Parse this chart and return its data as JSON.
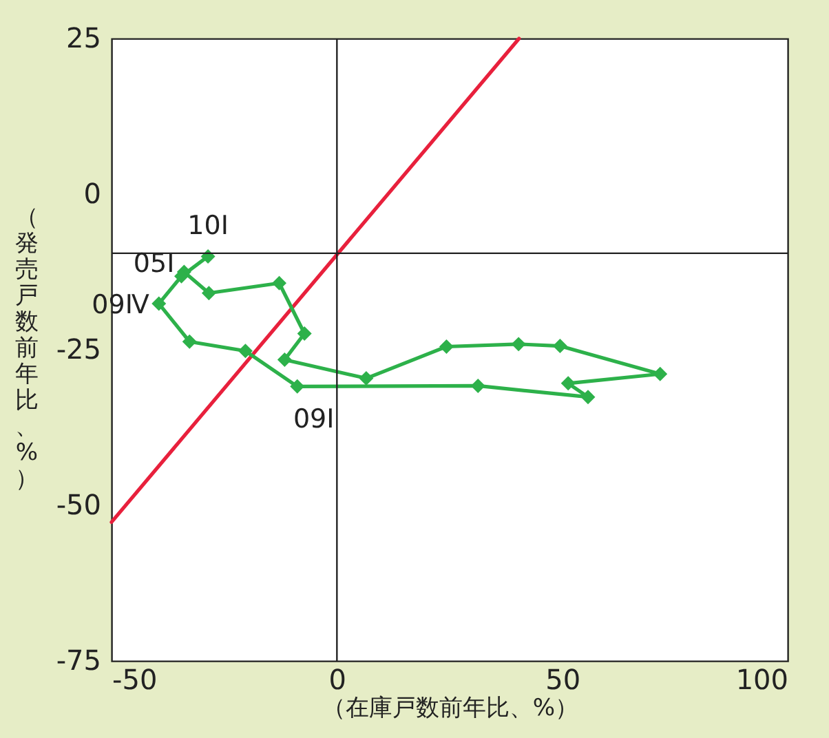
{
  "chart_data": {
    "type": "line",
    "xlabel": "（在庫戸数前年比、%）",
    "ylabel": "（発売戸数前年比、%）",
    "xlim": [
      -50,
      100
    ],
    "xticks": [
      -50,
      0,
      50,
      100
    ],
    "ylim": [
      -75,
      25
    ],
    "yticks": [
      -75,
      -50,
      -25,
      0,
      25
    ],
    "grid": false,
    "line_style": "solid",
    "series": [
      {
        "type": "line",
        "color": "#2db14a",
        "marker": "diamond",
        "x": [
          -33.9,
          -28.4,
          -12.8,
          -7.2,
          -11.6,
          6.5,
          24.3,
          40.3,
          49.5,
          71.7,
          51.3,
          55.7,
          31.3,
          -8.8,
          -20.3,
          -32.7,
          -39.5,
          -34.5,
          -28.6
        ],
        "values": [
          -12.5,
          -15.9,
          -14.3,
          -22.4,
          -26.6,
          -29.6,
          -24.5,
          -24.1,
          -24.4,
          -28.9,
          -30.4,
          -32.6,
          -30.8,
          -30.9,
          -25.2,
          -23.7,
          -17.6,
          -13.2,
          -10.0
        ]
      },
      {
        "type": "line",
        "color": "#e8203c",
        "marker": "none",
        "x": [
          -50,
          40.4
        ],
        "values": [
          -52.7,
          25
        ]
      }
    ],
    "ref_lines": [
      {
        "axis": "x",
        "value": 0,
        "color": "#222222"
      },
      {
        "axis": "y",
        "value": -9.5,
        "color": "#222222"
      }
    ],
    "annotations": [
      {
        "text": "10Ⅰ",
        "x": -28.6,
        "y": -10.0
      },
      {
        "text": "05Ⅰ",
        "x": -33.9,
        "y": -12.5
      },
      {
        "text": "09Ⅳ",
        "x": -39.5,
        "y": -17.6
      },
      {
        "text": "09Ⅰ",
        "x": -8.8,
        "y": -30.9
      }
    ]
  }
}
